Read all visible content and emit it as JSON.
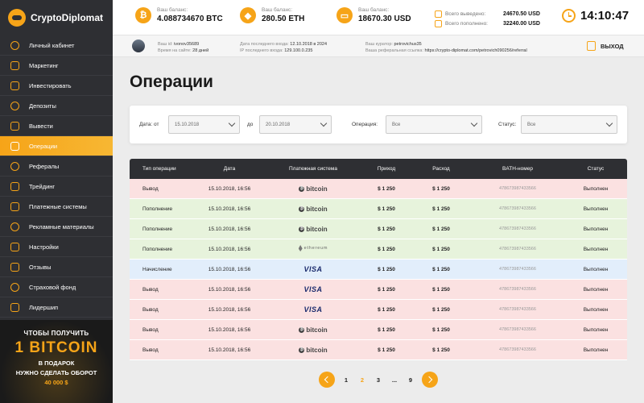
{
  "app": {
    "name": "CryptoDiplomat"
  },
  "sidebar": {
    "items": [
      {
        "label": "Личный кабинет",
        "icon": "user-icon"
      },
      {
        "label": "Маркетинг",
        "icon": "megaphone-icon"
      },
      {
        "label": "Инвестировать",
        "icon": "invest-icon"
      },
      {
        "label": "Депозиты",
        "icon": "deposit-icon"
      },
      {
        "label": "Вывести",
        "icon": "withdraw-icon"
      },
      {
        "label": "Операции",
        "icon": "operations-icon",
        "active": true
      },
      {
        "label": "Рефералы",
        "icon": "referrals-icon"
      },
      {
        "label": "Трейдинг",
        "icon": "trading-icon"
      },
      {
        "label": "Платежные системы",
        "icon": "payment-systems-icon"
      },
      {
        "label": "Рекламные материалы",
        "icon": "ad-materials-icon"
      },
      {
        "label": "Настройки",
        "icon": "gear-icon"
      },
      {
        "label": "Отзывы",
        "icon": "chat-icon"
      },
      {
        "label": "Страховой фонд",
        "icon": "shield-icon"
      },
      {
        "label": "Лидершип",
        "icon": "leader-icon"
      }
    ]
  },
  "promo": {
    "line1": "ЧТОБЫ ПОЛУЧИТЬ",
    "line2": "1 BITCOIN",
    "line3": "В ПОДАРОК",
    "line4": "НУЖНО СДЕЛАТЬ ОБОРОТ",
    "line5": "40 000 $"
  },
  "balances": [
    {
      "label": "Ваш баланс:",
      "value": "4.088734670 BTC",
      "icon": "bitcoin-icon",
      "glyph": "₿"
    },
    {
      "label": "Ваш баланс:",
      "value": "280.50 ETH",
      "icon": "ethereum-icon",
      "glyph": "◆"
    },
    {
      "label": "Ваш баланс:",
      "value": "18670.30 USD",
      "icon": "card-icon",
      "glyph": "▭"
    }
  ],
  "totals": {
    "withdrawn_label": "Всего выведено:",
    "withdrawn_value": "24670.50 USD",
    "deposited_label": "Всего пополнено:",
    "deposited_value": "32240.00 USD"
  },
  "clock": {
    "time": "14:10:47"
  },
  "user": {
    "id_label": "Ваш id:",
    "id_value": "ivonov35689",
    "time_label": "Время на сайте:",
    "time_value": "28 дней",
    "last_login_label": "Дата последнего входа:",
    "last_login_value": "12.10.2018 в 2024",
    "ip_label": "IP последнего входа:",
    "ip_value": "129.100.0.235",
    "curator_label": "Ваш куратор:",
    "curator_value": "petrovichus35",
    "ref_label": "Ваша реферальная ссылка:",
    "ref_value": "https://crypto-diplomat.com/petrovich090256/referral",
    "logout_label": "ВЫХОД"
  },
  "page": {
    "title": "Операции"
  },
  "filters": {
    "date_from_label": "Дата: от",
    "date_from_value": "15.10.2018",
    "date_to_label": "до",
    "date_to_value": "20.10.2018",
    "operation_label": "Операция:",
    "operation_value": "Все",
    "status_label": "Статус:",
    "status_value": "Все"
  },
  "table": {
    "headers": [
      "Тип операции",
      "Дата",
      "Платежная система",
      "Приход",
      "Расход",
      "BATH-номер",
      "Статус"
    ],
    "rows": [
      {
        "type": "Вывод",
        "date": "15.10.2018, 16:56",
        "system": "bitcoin",
        "income": "$ 1 250",
        "expense": "$ 1 250",
        "bath": "478673987433566",
        "status": "Выполнен",
        "tone": "red"
      },
      {
        "type": "Пополнение",
        "date": "15.10.2018, 16:56",
        "system": "bitcoin",
        "income": "$ 1 250",
        "expense": "$ 1 250",
        "bath": "478673987433566",
        "status": "Выполнен",
        "tone": "green"
      },
      {
        "type": "Пополнение",
        "date": "15.10.2018, 16:56",
        "system": "bitcoin",
        "income": "$ 1 250",
        "expense": "$ 1 250",
        "bath": "478673987433566",
        "status": "Выполнен",
        "tone": "green"
      },
      {
        "type": "Пополнение",
        "date": "15.10.2018, 16:56",
        "system": "ethereum",
        "income": "$ 1 250",
        "expense": "$ 1 250",
        "bath": "478673987433566",
        "status": "Выполнен",
        "tone": "green"
      },
      {
        "type": "Начисление",
        "date": "15.10.2018, 16:56",
        "system": "VISA",
        "income": "$ 1 250",
        "expense": "$ 1 250",
        "bath": "478673987433566",
        "status": "Выполнен",
        "tone": "blue"
      },
      {
        "type": "Вывод",
        "date": "15.10.2018, 16:56",
        "system": "VISA",
        "income": "$ 1 250",
        "expense": "$ 1 250",
        "bath": "478673987433566",
        "status": "Выполнен",
        "tone": "red"
      },
      {
        "type": "Вывод",
        "date": "15.10.2018, 16:56",
        "system": "VISA",
        "income": "$ 1 250",
        "expense": "$ 1 250",
        "bath": "478673987433566",
        "status": "Выполнен",
        "tone": "red"
      },
      {
        "type": "Вывод",
        "date": "15.10.2018, 16:56",
        "system": "bitcoin",
        "income": "$ 1 250",
        "expense": "$ 1 250",
        "bath": "478673987433566",
        "status": "Выполнен",
        "tone": "red"
      },
      {
        "type": "Вывод",
        "date": "15.10.2018, 16:56",
        "system": "bitcoin",
        "income": "$ 1 250",
        "expense": "$ 1 250",
        "bath": "478673987433566",
        "status": "Выполнен",
        "tone": "red"
      }
    ]
  },
  "pagination": {
    "pages": [
      "1",
      "2",
      "3",
      "...",
      "9"
    ],
    "active": "2"
  }
}
